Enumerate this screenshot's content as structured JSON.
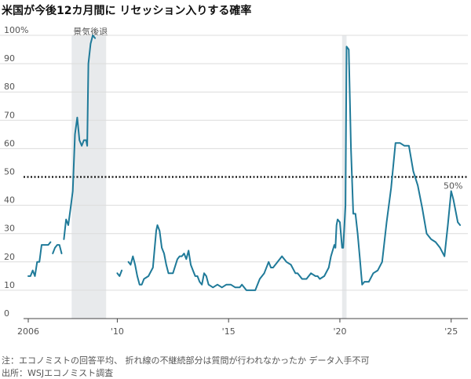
{
  "title": "米国が今後12カ月間に リセッション入りする確率",
  "note": "注：エコノミストの回答平均、 折れ線の不継続部分は質問が行われなかったか データ入手不可",
  "source": "出所：WSJエコノミスト調査",
  "chart_data": {
    "type": "line",
    "title": "米国が今後12カ月間に リセッション入りする確率",
    "ylim": [
      0,
      100
    ],
    "xlim": [
      2006,
      2025.75
    ],
    "y_ticks": [
      {
        "value": 0,
        "label": "0"
      },
      {
        "value": 10,
        "label": "10"
      },
      {
        "value": 20,
        "label": "20"
      },
      {
        "value": 30,
        "label": "30"
      },
      {
        "value": 40,
        "label": "40"
      },
      {
        "value": 50,
        "label": "50"
      },
      {
        "value": 60,
        "label": "60"
      },
      {
        "value": 70,
        "label": "70"
      },
      {
        "value": 80,
        "label": "80"
      },
      {
        "value": 90,
        "label": "90"
      },
      {
        "value": 100,
        "label": "100%"
      }
    ],
    "x_ticks": [
      {
        "value": 2006,
        "label": "2006"
      },
      {
        "value": 2010,
        "label": "'10"
      },
      {
        "value": 2015,
        "label": "'15"
      },
      {
        "value": 2020,
        "label": "'20"
      },
      {
        "value": 2025,
        "label": "'25"
      }
    ],
    "reference_line": {
      "value": 50,
      "style": "dotted",
      "label": "50%"
    },
    "recession_bands": [
      {
        "start": 2007.95,
        "end": 2009.5,
        "label": "景気後退"
      },
      {
        "start": 2020.1,
        "end": 2020.3,
        "label": ""
      }
    ],
    "color": "#1f7a99",
    "segments": [
      [
        [
          2006.0,
          15
        ],
        [
          2006.1,
          15
        ],
        [
          2006.2,
          17
        ],
        [
          2006.3,
          15
        ],
        [
          2006.4,
          20
        ],
        [
          2006.5,
          20
        ],
        [
          2006.6,
          26
        ],
        [
          2006.7,
          26
        ],
        [
          2006.8,
          26
        ],
        [
          2006.9,
          26
        ],
        [
          2007.0,
          27
        ]
      ],
      [
        [
          2007.1,
          23
        ],
        [
          2007.2,
          25
        ],
        [
          2007.3,
          26
        ],
        [
          2007.4,
          26
        ],
        [
          2007.5,
          23
        ]
      ],
      [
        [
          2007.6,
          28
        ],
        [
          2007.7,
          35
        ],
        [
          2007.8,
          33
        ],
        [
          2007.9,
          39
        ],
        [
          2008.0,
          45
        ],
        [
          2008.1,
          65
        ],
        [
          2008.2,
          71
        ],
        [
          2008.3,
          63
        ],
        [
          2008.4,
          61
        ],
        [
          2008.5,
          63
        ],
        [
          2008.6,
          63
        ],
        [
          2008.65,
          61
        ],
        [
          2008.7,
          90
        ],
        [
          2008.8,
          97
        ],
        [
          2008.9,
          100
        ],
        [
          2009.0,
          99
        ]
      ],
      [
        [
          2010.0,
          16
        ],
        [
          2010.1,
          15
        ],
        [
          2010.2,
          17
        ]
      ],
      [
        [
          2010.5,
          20
        ],
        [
          2010.6,
          19
        ],
        [
          2010.7,
          22
        ],
        [
          2010.8,
          19
        ],
        [
          2010.9,
          15
        ],
        [
          2011.0,
          12
        ],
        [
          2011.1,
          12
        ],
        [
          2011.2,
          14
        ],
        [
          2011.4,
          15
        ],
        [
          2011.6,
          18
        ],
        [
          2011.75,
          31
        ],
        [
          2011.8,
          33
        ],
        [
          2011.9,
          31
        ],
        [
          2012.0,
          25
        ],
        [
          2012.1,
          23
        ],
        [
          2012.2,
          19
        ],
        [
          2012.3,
          16
        ],
        [
          2012.5,
          16
        ],
        [
          2012.7,
          21
        ],
        [
          2012.8,
          22
        ],
        [
          2012.9,
          22
        ],
        [
          2013.0,
          23
        ],
        [
          2013.1,
          21
        ],
        [
          2013.2,
          24
        ],
        [
          2013.3,
          19
        ],
        [
          2013.4,
          17
        ],
        [
          2013.5,
          15
        ],
        [
          2013.6,
          15
        ],
        [
          2013.7,
          13
        ],
        [
          2013.8,
          12
        ],
        [
          2013.9,
          16
        ],
        [
          2014.0,
          15
        ],
        [
          2014.1,
          12
        ],
        [
          2014.3,
          11
        ],
        [
          2014.5,
          12
        ],
        [
          2014.7,
          11
        ],
        [
          2014.9,
          12
        ],
        [
          2015.1,
          12
        ],
        [
          2015.3,
          11
        ],
        [
          2015.5,
          11
        ],
        [
          2015.6,
          12
        ],
        [
          2015.8,
          10
        ],
        [
          2016.0,
          10
        ],
        [
          2016.2,
          10
        ],
        [
          2016.4,
          14
        ],
        [
          2016.6,
          16
        ],
        [
          2016.8,
          20
        ],
        [
          2016.9,
          18
        ],
        [
          2017.0,
          18
        ],
        [
          2017.2,
          20
        ],
        [
          2017.4,
          22
        ],
        [
          2017.6,
          20
        ],
        [
          2017.8,
          19
        ],
        [
          2018.0,
          16
        ],
        [
          2018.1,
          16
        ],
        [
          2018.3,
          14
        ],
        [
          2018.5,
          14
        ],
        [
          2018.7,
          16
        ],
        [
          2018.9,
          15
        ],
        [
          2019.0,
          15
        ],
        [
          2019.1,
          14
        ],
        [
          2019.3,
          15
        ],
        [
          2019.5,
          18
        ],
        [
          2019.6,
          22
        ],
        [
          2019.75,
          26
        ],
        [
          2019.8,
          25
        ],
        [
          2019.85,
          33
        ],
        [
          2019.9,
          35
        ],
        [
          2020.0,
          34
        ],
        [
          2020.1,
          25
        ],
        [
          2020.15,
          25
        ],
        [
          2020.25,
          40
        ],
        [
          2020.3,
          96
        ],
        [
          2020.4,
          95
        ],
        [
          2020.5,
          60
        ],
        [
          2020.6,
          37
        ],
        [
          2020.7,
          37
        ],
        [
          2020.8,
          30
        ],
        [
          2020.9,
          21
        ],
        [
          2021.0,
          12
        ],
        [
          2021.1,
          13
        ],
        [
          2021.3,
          13
        ],
        [
          2021.5,
          16
        ],
        [
          2021.7,
          17
        ],
        [
          2021.9,
          20
        ],
        [
          2022.1,
          34
        ],
        [
          2022.3,
          46
        ],
        [
          2022.5,
          62
        ],
        [
          2022.7,
          62
        ],
        [
          2022.9,
          61
        ],
        [
          2023.1,
          61
        ],
        [
          2023.3,
          52
        ],
        [
          2023.5,
          47
        ],
        [
          2023.7,
          39
        ],
        [
          2023.9,
          30
        ],
        [
          2024.1,
          28
        ],
        [
          2024.3,
          27
        ],
        [
          2024.5,
          25
        ],
        [
          2024.7,
          22
        ],
        [
          2024.85,
          33
        ],
        [
          2025.0,
          45
        ],
        [
          2025.1,
          42
        ],
        [
          2025.3,
          34
        ],
        [
          2025.4,
          33
        ]
      ]
    ]
  }
}
